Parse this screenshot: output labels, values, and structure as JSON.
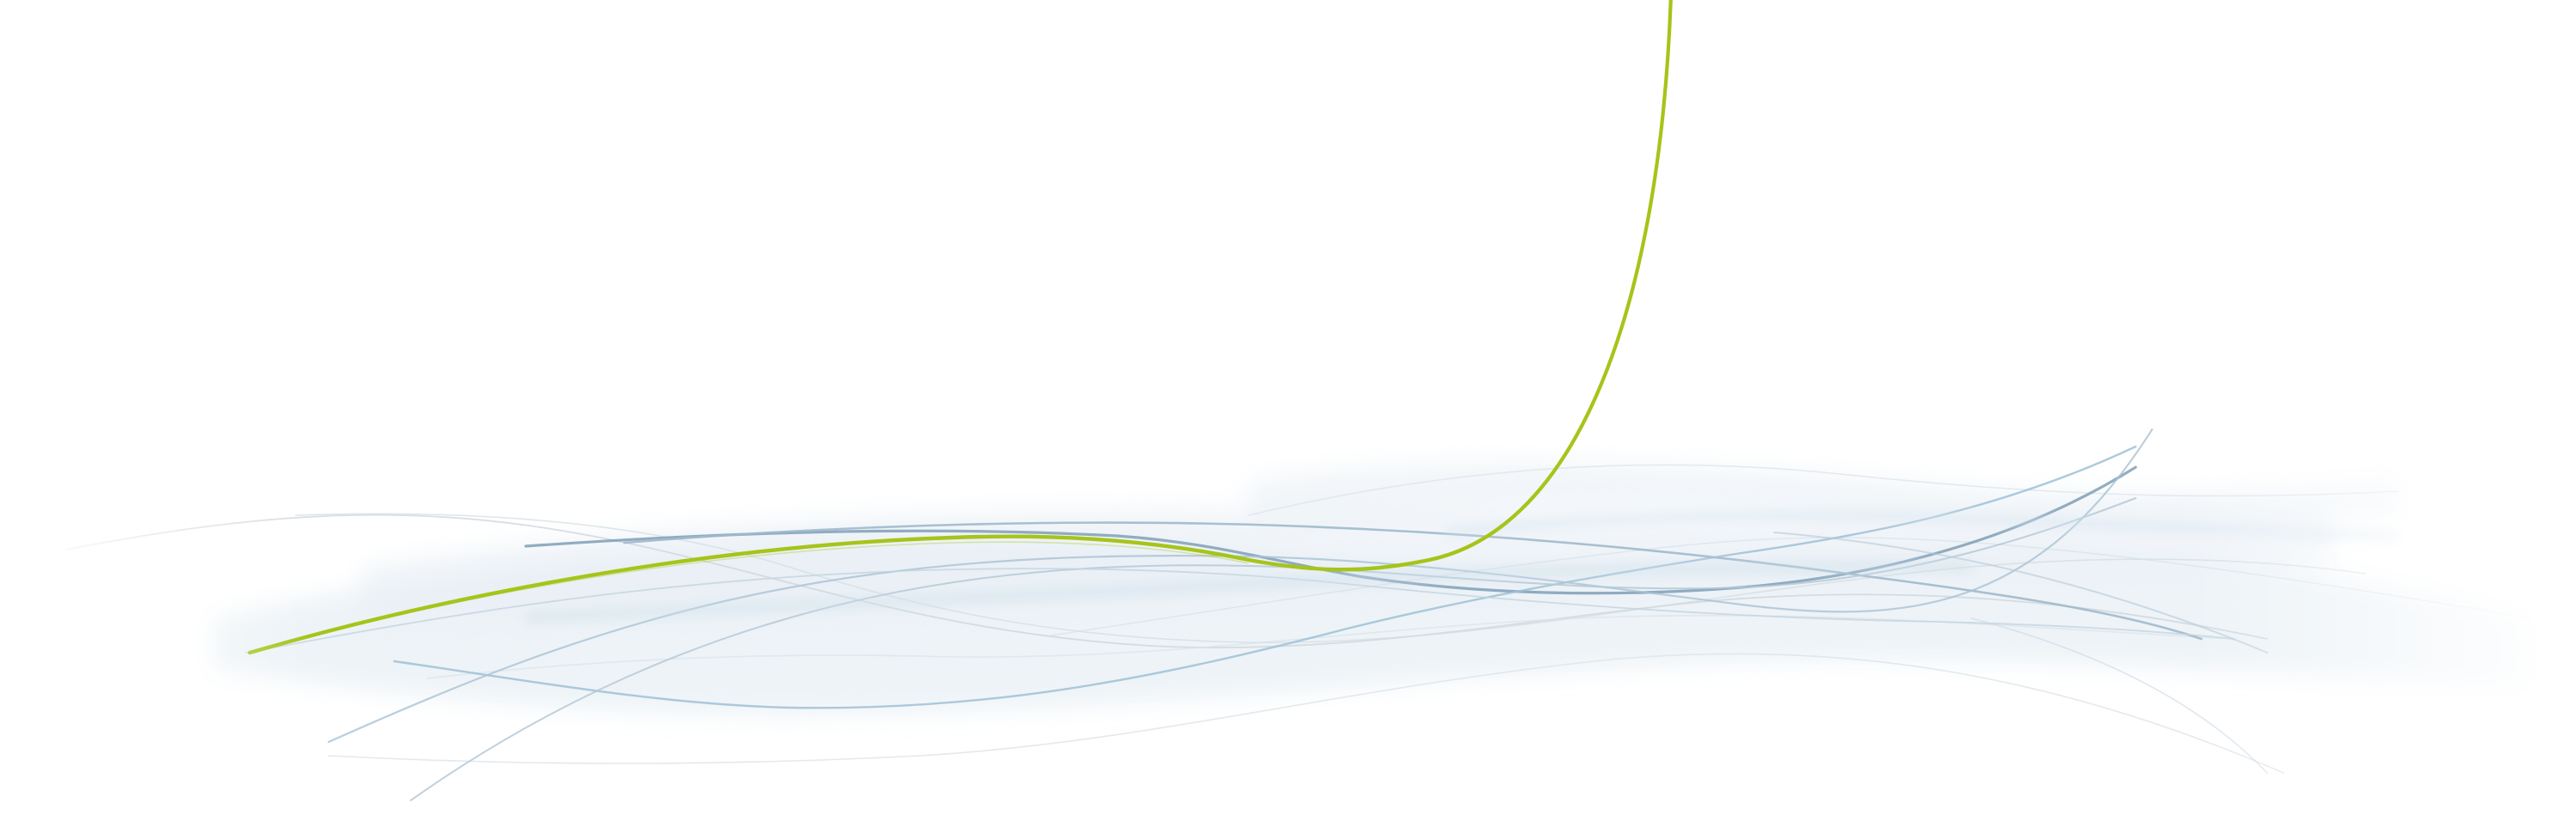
{
  "background_color": "#ffffff",
  "palette": {
    "accent_green": "#a6c41a",
    "wave_blue": "#7f9fb6",
    "wave_blue_light": "#b9ccda",
    "wave_gray": "#c9d2d9",
    "haze_blue": "#dfe9f1"
  }
}
